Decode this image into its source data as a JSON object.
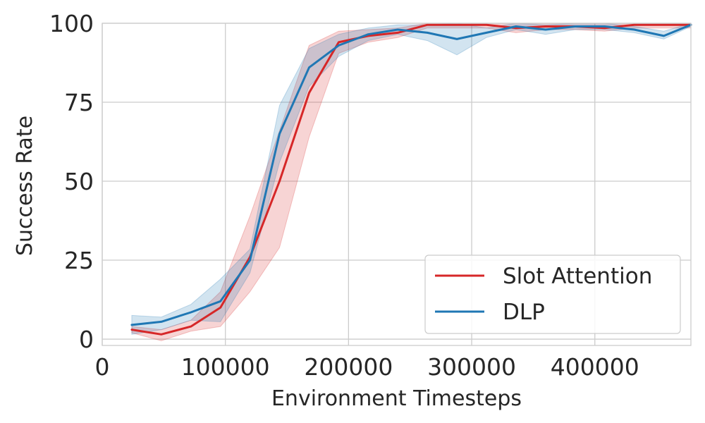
{
  "chart_data": {
    "type": "line",
    "title": "",
    "xlabel": "Environment Timesteps",
    "ylabel": "Success Rate",
    "xlim": [
      0,
      478000
    ],
    "ylim": [
      -2,
      100
    ],
    "xticks": [
      0,
      100000,
      200000,
      300000,
      400000
    ],
    "xtick_labels": [
      "0",
      "100000",
      "200000",
      "300000",
      "400000"
    ],
    "yticks": [
      0,
      25,
      50,
      75,
      100
    ],
    "ytick_labels": [
      "0",
      "25",
      "50",
      "75",
      "100"
    ],
    "grid": true,
    "legend_position": "bottom-right",
    "x": [
      24000,
      48000,
      72000,
      96000,
      120000,
      144000,
      168000,
      192000,
      216000,
      240000,
      264000,
      288000,
      312000,
      336000,
      360000,
      384000,
      408000,
      432000,
      456000,
      478000
    ],
    "series": [
      {
        "name": "Slot Attention",
        "color": "#d62728",
        "values": [
          3,
          1.5,
          4,
          10,
          26,
          50,
          78,
          94,
          96,
          97,
          99.5,
          99.5,
          99.5,
          98.5,
          99,
          99,
          98.5,
          99.5,
          99.5,
          99.5
        ],
        "lower": [
          2,
          -0.5,
          2.5,
          4,
          15,
          29,
          64,
          90.5,
          94,
          95.5,
          98.5,
          98.5,
          98.5,
          97,
          98,
          98,
          97.5,
          98.5,
          98.5,
          98.5
        ],
        "upper": [
          4,
          3,
          6,
          15,
          39,
          66,
          93,
          97.5,
          98,
          98.5,
          100,
          100,
          100,
          100,
          100,
          100,
          100,
          100,
          100,
          100
        ]
      },
      {
        "name": "DLP",
        "color": "#1f77b4",
        "values": [
          4.5,
          5.5,
          8.5,
          12,
          25,
          65,
          86,
          93,
          96.5,
          98,
          97,
          95,
          97,
          99,
          98,
          99,
          99,
          98,
          96,
          99.5
        ],
        "lower": [
          1.5,
          3,
          6,
          5.5,
          21,
          56,
          80,
          89.5,
          94.5,
          96.5,
          94.5,
          90,
          95.5,
          98,
          96.5,
          98,
          98,
          97,
          95,
          99
        ],
        "upper": [
          7.5,
          7,
          11,
          19,
          28.5,
          74,
          92,
          96.5,
          98.5,
          99.5,
          99.5,
          100,
          98.5,
          100,
          99.5,
          100,
          100,
          99,
          97.5,
          100
        ]
      }
    ]
  }
}
